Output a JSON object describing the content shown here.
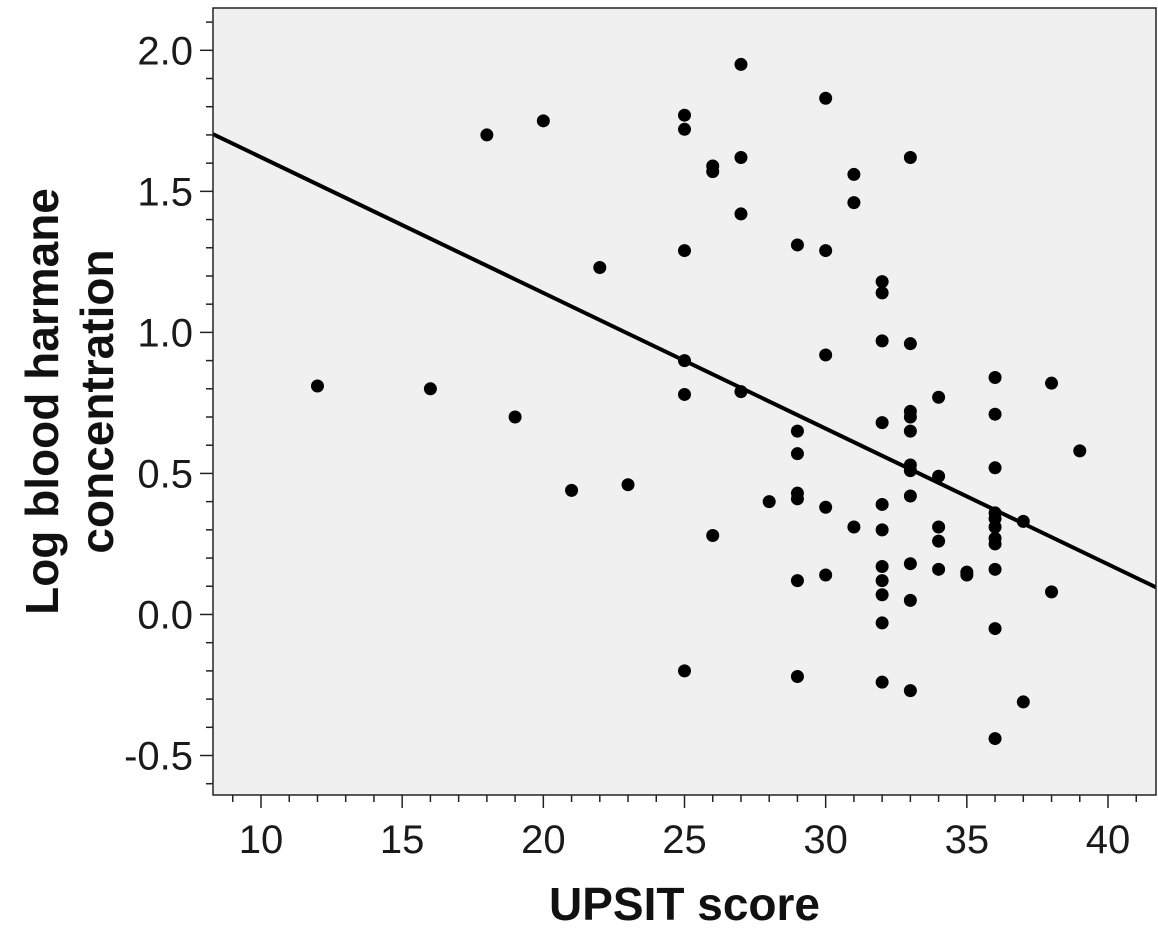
{
  "chart_data": {
    "type": "scatter",
    "title": "",
    "xlabel": "UPSIT score",
    "ylabel_lines": [
      "Log blood harmane",
      "concentration"
    ],
    "xlim": [
      8.3,
      41.7
    ],
    "ylim": [
      -0.64,
      2.15
    ],
    "x_ticks": [
      10,
      15,
      20,
      25,
      30,
      35,
      40
    ],
    "x_tick_labels": [
      "10",
      "15",
      "20",
      "25",
      "30",
      "35",
      "40"
    ],
    "y_ticks": [
      -0.5,
      0.0,
      0.5,
      1.0,
      1.5,
      2.0
    ],
    "y_tick_labels": [
      "-0.5",
      "0.0",
      "0.5",
      "1.0",
      "1.5",
      "2.0"
    ],
    "grid": false,
    "legend": "none",
    "colors": {
      "plot_background": "#f0f0f0",
      "points": "#000000",
      "line": "#000000"
    },
    "fit_line": {
      "slope": -0.0481,
      "intercept": 2.102
    },
    "points": [
      {
        "x": 12,
        "y": 0.81
      },
      {
        "x": 16,
        "y": 0.8
      },
      {
        "x": 18,
        "y": 1.7
      },
      {
        "x": 19,
        "y": 0.7
      },
      {
        "x": 20,
        "y": 1.75
      },
      {
        "x": 21,
        "y": 0.44
      },
      {
        "x": 22,
        "y": 1.23
      },
      {
        "x": 23,
        "y": 0.46
      },
      {
        "x": 25,
        "y": 1.77
      },
      {
        "x": 25,
        "y": 1.72
      },
      {
        "x": 25,
        "y": 1.29
      },
      {
        "x": 25,
        "y": 0.9
      },
      {
        "x": 25,
        "y": 0.78
      },
      {
        "x": 25,
        "y": -0.2
      },
      {
        "x": 26,
        "y": 1.59
      },
      {
        "x": 26,
        "y": 1.57
      },
      {
        "x": 26,
        "y": 0.28
      },
      {
        "x": 27,
        "y": 1.95
      },
      {
        "x": 27,
        "y": 1.62
      },
      {
        "x": 27,
        "y": 1.42
      },
      {
        "x": 27,
        "y": 0.79
      },
      {
        "x": 28,
        "y": 0.4
      },
      {
        "x": 29,
        "y": 1.31
      },
      {
        "x": 29,
        "y": 0.65
      },
      {
        "x": 29,
        "y": 0.57
      },
      {
        "x": 29,
        "y": 0.43
      },
      {
        "x": 29,
        "y": 0.41
      },
      {
        "x": 29,
        "y": 0.12
      },
      {
        "x": 29,
        "y": -0.22
      },
      {
        "x": 30,
        "y": 1.83
      },
      {
        "x": 30,
        "y": 1.29
      },
      {
        "x": 30,
        "y": 0.92
      },
      {
        "x": 30,
        "y": 0.38
      },
      {
        "x": 30,
        "y": 0.14
      },
      {
        "x": 31,
        "y": 1.56
      },
      {
        "x": 31,
        "y": 1.46
      },
      {
        "x": 31,
        "y": 0.31
      },
      {
        "x": 32,
        "y": 1.18
      },
      {
        "x": 32,
        "y": 1.14
      },
      {
        "x": 32,
        "y": 0.97
      },
      {
        "x": 32,
        "y": 0.68
      },
      {
        "x": 32,
        "y": 0.39
      },
      {
        "x": 32,
        "y": 0.3
      },
      {
        "x": 32,
        "y": 0.17
      },
      {
        "x": 32,
        "y": 0.12
      },
      {
        "x": 32,
        "y": 0.07
      },
      {
        "x": 32,
        "y": -0.03
      },
      {
        "x": 32,
        "y": -0.24
      },
      {
        "x": 33,
        "y": 1.62
      },
      {
        "x": 33,
        "y": 0.96
      },
      {
        "x": 33,
        "y": 0.72
      },
      {
        "x": 33,
        "y": 0.7
      },
      {
        "x": 33,
        "y": 0.65
      },
      {
        "x": 33,
        "y": 0.53
      },
      {
        "x": 33,
        "y": 0.51
      },
      {
        "x": 33,
        "y": 0.42
      },
      {
        "x": 33,
        "y": 0.18
      },
      {
        "x": 33,
        "y": 0.05
      },
      {
        "x": 33,
        "y": -0.27
      },
      {
        "x": 34,
        "y": 0.77
      },
      {
        "x": 34,
        "y": 0.49
      },
      {
        "x": 34,
        "y": 0.31
      },
      {
        "x": 34,
        "y": 0.26
      },
      {
        "x": 34,
        "y": 0.16
      },
      {
        "x": 35,
        "y": 0.15
      },
      {
        "x": 35,
        "y": 0.14
      },
      {
        "x": 36,
        "y": 0.84
      },
      {
        "x": 36,
        "y": 0.71
      },
      {
        "x": 36,
        "y": 0.52
      },
      {
        "x": 36,
        "y": 0.36
      },
      {
        "x": 36,
        "y": 0.34
      },
      {
        "x": 36,
        "y": 0.31
      },
      {
        "x": 36,
        "y": 0.27
      },
      {
        "x": 36,
        "y": 0.25
      },
      {
        "x": 36,
        "y": 0.16
      },
      {
        "x": 36,
        "y": -0.05
      },
      {
        "x": 36,
        "y": -0.44
      },
      {
        "x": 37,
        "y": 0.33
      },
      {
        "x": 37,
        "y": -0.31
      },
      {
        "x": 38,
        "y": 0.82
      },
      {
        "x": 38,
        "y": 0.08
      },
      {
        "x": 39,
        "y": 0.58
      }
    ]
  }
}
